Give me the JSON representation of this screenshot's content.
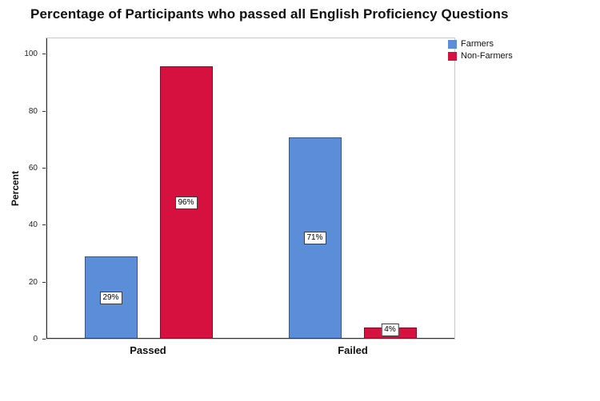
{
  "chart_data": {
    "type": "bar",
    "title": "Percentage of Participants who passed all English Proficiency Questions",
    "categories": [
      "Passed",
      "Failed"
    ],
    "series": [
      {
        "name": "Farmers",
        "color": "#5B8DD9",
        "border_color": "#35568C",
        "values": [
          29,
          71
        ],
        "labels": [
          "29%",
          "71%"
        ]
      },
      {
        "name": "Non-Farmers",
        "color": "#D6103F",
        "border_color": "#820A27",
        "values": [
          96,
          4
        ],
        "labels": [
          "96%",
          "4%"
        ]
      }
    ],
    "xlabel": "",
    "ylabel": "Percent",
    "yticks": [
      0,
      20,
      40,
      60,
      80,
      100
    ],
    "ylim": [
      0,
      106
    ],
    "grid": false,
    "legend_position": "top-right"
  }
}
